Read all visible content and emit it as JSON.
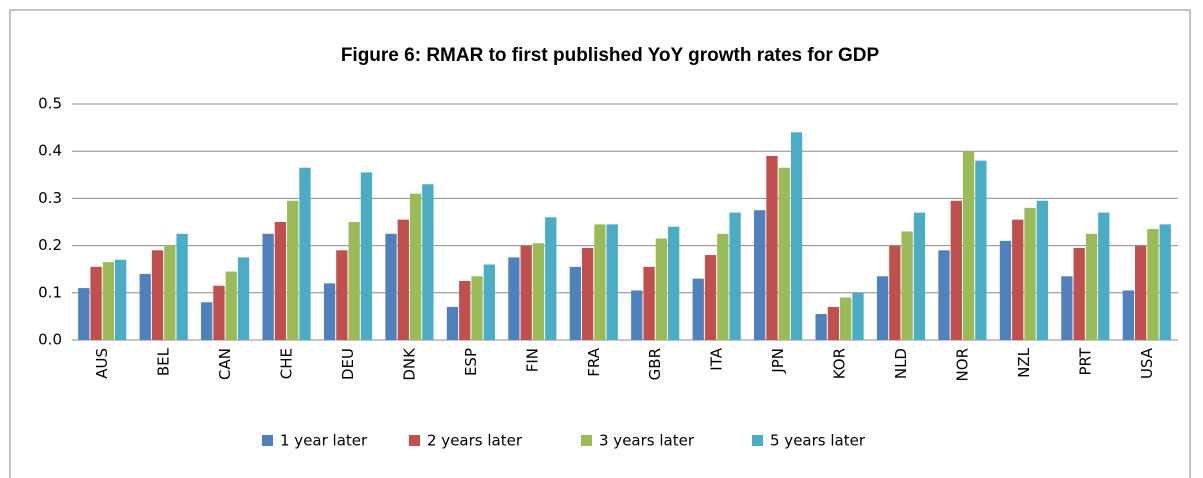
{
  "chart_data": {
    "type": "bar",
    "title": "Figure 6: RMAR to first published YoY growth rates for GDP",
    "categories": [
      "AUS",
      "BEL",
      "CAN",
      "CHE",
      "DEU",
      "DNK",
      "ESP",
      "FIN",
      "FRA",
      "GBR",
      "ITA",
      "JPN",
      "KOR",
      "NLD",
      "NOR",
      "NZL",
      "PRT",
      "USA"
    ],
    "series": [
      {
        "name": "1 year later",
        "color": "#4f81bd",
        "values": [
          0.11,
          0.14,
          0.08,
          0.225,
          0.12,
          0.225,
          0.07,
          0.175,
          0.155,
          0.105,
          0.13,
          0.275,
          0.055,
          0.135,
          0.19,
          0.21,
          0.135,
          0.105
        ]
      },
      {
        "name": "2 years later",
        "color": "#c0504d",
        "values": [
          0.155,
          0.19,
          0.115,
          0.25,
          0.19,
          0.255,
          0.125,
          0.2,
          0.195,
          0.155,
          0.18,
          0.39,
          0.07,
          0.2,
          0.295,
          0.255,
          0.195,
          0.2
        ]
      },
      {
        "name": "3 years later",
        "color": "#9bbb59",
        "values": [
          0.165,
          0.2,
          0.145,
          0.295,
          0.25,
          0.31,
          0.135,
          0.205,
          0.245,
          0.215,
          0.225,
          0.365,
          0.09,
          0.23,
          0.4,
          0.28,
          0.225,
          0.235
        ]
      },
      {
        "name": "5 years later",
        "color": "#4bacc6",
        "values": [
          0.17,
          0.225,
          0.175,
          0.365,
          0.355,
          0.33,
          0.16,
          0.26,
          0.245,
          0.24,
          0.27,
          0.44,
          0.1,
          0.27,
          0.38,
          0.295,
          0.27,
          0.245
        ]
      }
    ],
    "ylim": [
      0,
      0.5
    ],
    "yticks": [
      {
        "value": 0,
        "label": "0.0"
      },
      0.1,
      0.2,
      0.3,
      0.4,
      0.5
    ],
    "grid": true,
    "legend": "bottom"
  }
}
